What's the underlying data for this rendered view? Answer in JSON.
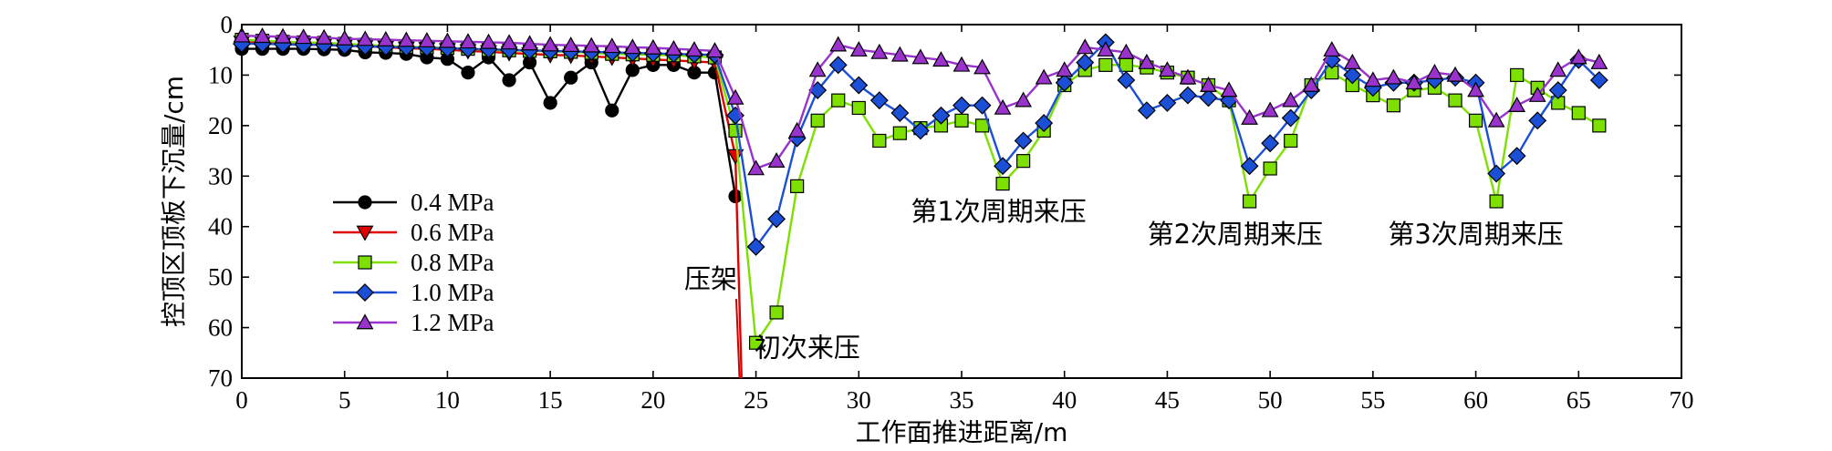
{
  "chart_data": {
    "type": "line",
    "title": "",
    "xlabel": "工作面推进距离/m",
    "ylabel": "控顶区顶板下沉量/cm",
    "xlim": [
      0,
      70
    ],
    "ylim": [
      0,
      70
    ],
    "y_inverted": true,
    "x_ticks": [
      0,
      5,
      10,
      15,
      20,
      25,
      30,
      35,
      40,
      45,
      50,
      55,
      60,
      65,
      70
    ],
    "y_ticks": [
      0,
      10,
      20,
      30,
      40,
      50,
      60,
      70
    ],
    "grid": false,
    "legend_position": "bottom-left",
    "series": [
      {
        "name": "0.4 MPa",
        "color": "#000000",
        "marker": "circle",
        "x": [
          0,
          1,
          2,
          3,
          4,
          5,
          6,
          7,
          8,
          9,
          10,
          11,
          12,
          13,
          14,
          15,
          16,
          17,
          18,
          19,
          20,
          21,
          22,
          23,
          24
        ],
        "y": [
          4.8,
          4.8,
          4.8,
          4.8,
          4.9,
          5.0,
          5.5,
          5.6,
          5.8,
          6.5,
          6.8,
          9.5,
          6.5,
          11.0,
          7.5,
          15.5,
          10.5,
          7.5,
          17.0,
          9.0,
          8.0,
          8.0,
          9.5,
          9.5,
          34.0
        ]
      },
      {
        "name": "0.6 MPa",
        "color": "#e00000",
        "marker": "triangle-down",
        "x": [
          0,
          1,
          2,
          3,
          4,
          5,
          6,
          7,
          8,
          9,
          10,
          11,
          12,
          13,
          14,
          15,
          16,
          17,
          18,
          19,
          20,
          21,
          22,
          23,
          24,
          24.3
        ],
        "y": [
          3.5,
          3.6,
          3.8,
          3.9,
          4.0,
          4.2,
          4.3,
          4.5,
          4.7,
          4.8,
          5.0,
          5.2,
          5.4,
          5.6,
          5.8,
          6.0,
          6.1,
          6.3,
          6.5,
          6.7,
          6.9,
          7.1,
          7.3,
          7.5,
          26.0,
          70
        ]
      },
      {
        "name": "0.8 MPa",
        "color": "#7ee000",
        "marker": "square",
        "x": [
          0,
          1,
          2,
          3,
          4,
          5,
          6,
          7,
          8,
          9,
          10,
          11,
          12,
          13,
          14,
          15,
          16,
          17,
          18,
          19,
          20,
          21,
          22,
          23,
          24,
          25,
          26,
          27,
          28,
          29,
          30,
          31,
          32,
          33,
          34,
          35,
          36,
          37,
          38,
          39,
          40,
          41,
          42,
          43,
          44,
          45,
          46,
          47,
          48,
          49,
          50,
          51,
          52,
          53,
          54,
          55,
          56,
          57,
          58,
          59,
          60,
          61,
          62,
          63,
          64,
          65,
          66
        ],
        "y": [
          3.0,
          3.2,
          3.4,
          3.5,
          3.6,
          3.8,
          4.0,
          4.2,
          4.4,
          4.5,
          4.6,
          4.8,
          5.0,
          5.1,
          5.2,
          5.3,
          5.4,
          5.6,
          5.8,
          5.9,
          6.0,
          6.1,
          6.3,
          6.5,
          21.0,
          63.0,
          57.0,
          32.0,
          19.0,
          15.0,
          16.5,
          23.0,
          21.5,
          20.5,
          20.0,
          19.0,
          20.0,
          31.5,
          27.0,
          21.0,
          12.0,
          9.0,
          8.0,
          8.0,
          8.5,
          9.5,
          10.5,
          12.0,
          15.0,
          35.0,
          28.5,
          23.0,
          12.0,
          9.5,
          12.0,
          14.0,
          16.0,
          13.0,
          12.5,
          15.0,
          19.0,
          35.0,
          10.0,
          12.5,
          15.5,
          17.5,
          20.0
        ]
      },
      {
        "name": "1.0 MPa",
        "color": "#1a4fd6",
        "marker": "diamond",
        "x": [
          0,
          1,
          2,
          3,
          4,
          5,
          6,
          7,
          8,
          9,
          10,
          11,
          12,
          13,
          14,
          15,
          16,
          17,
          18,
          19,
          20,
          21,
          22,
          23,
          24,
          25,
          26,
          27,
          28,
          29,
          30,
          31,
          32,
          33,
          34,
          35,
          36,
          37,
          38,
          39,
          40,
          41,
          42,
          43,
          44,
          45,
          46,
          47,
          48,
          49,
          50,
          51,
          52,
          53,
          54,
          55,
          56,
          57,
          58,
          59,
          60,
          61,
          62,
          63,
          64,
          65,
          66
        ],
        "y": [
          3.8,
          3.8,
          3.9,
          4.0,
          4.0,
          4.2,
          4.3,
          4.4,
          4.5,
          4.6,
          4.7,
          4.8,
          4.9,
          5.0,
          5.1,
          5.2,
          5.3,
          5.4,
          5.5,
          5.6,
          5.7,
          5.8,
          5.9,
          6.0,
          18.0,
          44.0,
          38.5,
          22.5,
          13.0,
          8.0,
          12.0,
          15.0,
          17.5,
          21.0,
          18.0,
          16.0,
          16.0,
          28.0,
          23.0,
          19.5,
          11.5,
          7.5,
          3.5,
          11.0,
          17.0,
          15.5,
          14.0,
          14.5,
          15.0,
          28.0,
          23.5,
          18.5,
          13.0,
          7.0,
          10.0,
          12.5,
          11.5,
          11.5,
          11.0,
          10.5,
          11.5,
          29.5,
          26.0,
          19.0,
          13.0,
          7.0,
          11.0
        ]
      },
      {
        "name": "1.2 MPa",
        "color": "#9933cc",
        "marker": "triangle-up",
        "x": [
          0,
          1,
          2,
          3,
          4,
          5,
          6,
          7,
          8,
          9,
          10,
          11,
          12,
          13,
          14,
          15,
          16,
          17,
          18,
          19,
          20,
          21,
          22,
          23,
          24,
          25,
          26,
          27,
          28,
          29,
          30,
          31,
          32,
          33,
          34,
          35,
          36,
          37,
          38,
          39,
          40,
          41,
          42,
          43,
          44,
          45,
          46,
          47,
          48,
          49,
          50,
          51,
          52,
          53,
          54,
          55,
          56,
          57,
          58,
          59,
          60,
          61,
          62,
          63,
          64,
          65,
          66
        ],
        "y": [
          2.2,
          2.3,
          2.4,
          2.5,
          2.6,
          2.8,
          2.9,
          3.0,
          3.1,
          3.2,
          3.3,
          3.4,
          3.5,
          3.6,
          3.8,
          4.0,
          4.1,
          4.2,
          4.3,
          4.5,
          4.6,
          4.8,
          5.0,
          5.2,
          14.5,
          28.5,
          27.0,
          21.0,
          9.0,
          4.0,
          5.0,
          5.5,
          6.0,
          6.5,
          7.0,
          8.0,
          8.5,
          16.5,
          15.0,
          10.5,
          9.0,
          4.5,
          5.0,
          5.5,
          7.5,
          9.0,
          10.5,
          12.0,
          13.0,
          18.5,
          17.0,
          15.0,
          12.0,
          5.0,
          7.5,
          11.0,
          10.5,
          11.5,
          9.5,
          10.0,
          13.0,
          19.0,
          16.0,
          14.0,
          9.0,
          6.5,
          7.5
        ]
      }
    ],
    "annotations": [
      {
        "text": "压架",
        "x": 24.2,
        "y": 70,
        "label_x": 22.8,
        "label_y": 50
      },
      {
        "text": "初次来压",
        "x": 27.5,
        "y": 64
      },
      {
        "text": "第1次周期来压",
        "x": 36.8,
        "y": 37
      },
      {
        "text": "第2次周期来压",
        "x": 48.3,
        "y": 41.5
      },
      {
        "text": "第3次周期来压",
        "x": 60.0,
        "y": 41.5
      }
    ]
  }
}
